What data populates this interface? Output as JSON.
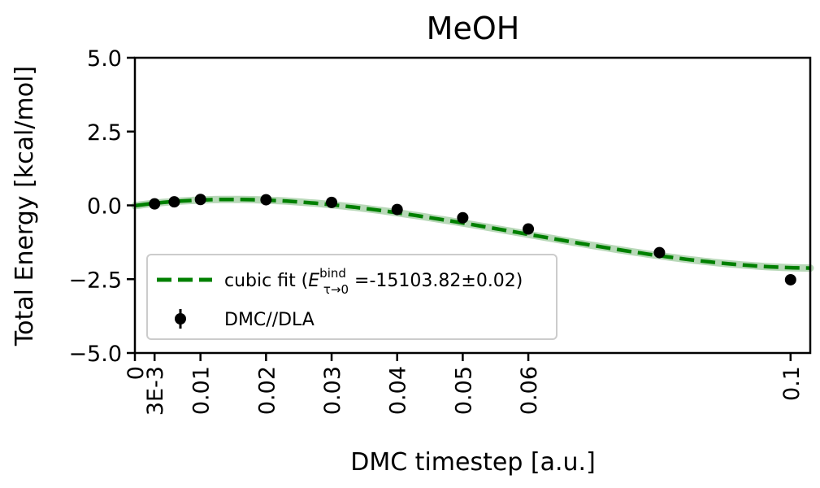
{
  "chart_data": {
    "type": "scatter",
    "title": "MeOH",
    "xlabel": "DMC timestep [a.u.]",
    "ylabel": "Total Energy [kcal/mol]",
    "xlim": [
      0,
      0.103
    ],
    "ylim": [
      -5.0,
      5.0
    ],
    "x_ticks": [
      {
        "value": 0,
        "label": "0"
      },
      {
        "value": 0.003,
        "label": "3E-3"
      },
      {
        "value": 0.01,
        "label": "0.01"
      },
      {
        "value": 0.02,
        "label": "0.02"
      },
      {
        "value": 0.03,
        "label": "0.03"
      },
      {
        "value": 0.04,
        "label": "0.04"
      },
      {
        "value": 0.05,
        "label": "0.05"
      },
      {
        "value": 0.06,
        "label": "0.06"
      },
      {
        "value": 0.1,
        "label": "0.1"
      }
    ],
    "y_ticks": [
      {
        "value": 5.0,
        "label": "5.0"
      },
      {
        "value": 2.5,
        "label": "2.5"
      },
      {
        "value": 0.0,
        "label": "0.0"
      },
      {
        "value": -2.5,
        "label": "−2.5"
      },
      {
        "value": -5.0,
        "label": "−5.0"
      }
    ],
    "grid": false,
    "legend_position": "bottom-left",
    "series": [
      {
        "name": "DMC//DLA",
        "kind": "points-with-errorbars",
        "color": "#000000",
        "x": [
          0.003,
          0.006,
          0.01,
          0.02,
          0.03,
          0.04,
          0.05,
          0.06,
          0.08,
          0.1
        ],
        "y": [
          0.05,
          0.12,
          0.2,
          0.19,
          0.1,
          -0.14,
          -0.42,
          -0.8,
          -1.6,
          -2.52
        ],
        "yerr": [
          0.02,
          0.02,
          0.02,
          0.02,
          0.02,
          0.02,
          0.02,
          0.02,
          0.02,
          0.02
        ]
      },
      {
        "name_prefix": "cubic fit (",
        "name_symbol": "E",
        "name_superscript": "bind",
        "name_subscript": "τ→0",
        "name_suffix": " =-15103.82±0.02)",
        "kind": "dashed-line",
        "color": "#008000",
        "band_color": "#b8d8b8",
        "coefficients": [
          -0.01,
          30.0,
          -1160.0,
          6500.0
        ],
        "x_range": [
          0,
          0.103
        ]
      }
    ]
  }
}
